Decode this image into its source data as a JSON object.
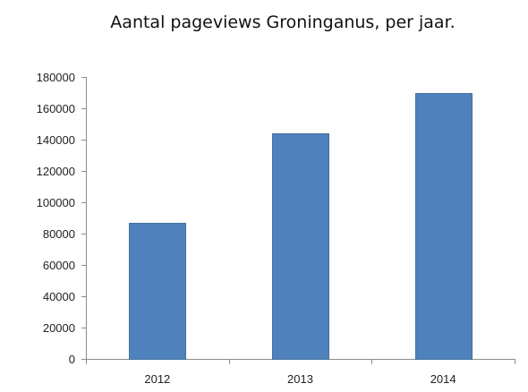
{
  "chart_data": {
    "type": "bar",
    "title": "Aantal pageviews Groninganus, per jaar.",
    "xlabel": "",
    "ylabel": "",
    "categories": [
      "2012",
      "2013",
      "2014"
    ],
    "series": [
      {
        "values": [
          87000,
          144000,
          169500
        ],
        "color": "#4f81bd"
      }
    ],
    "ylim": [
      0,
      180000
    ],
    "yticks": [
      "0",
      "20000",
      "40000",
      "60000",
      "80000",
      "100000",
      "120000",
      "140000",
      "160000",
      "180000"
    ],
    "grid": false,
    "legend": "none"
  }
}
